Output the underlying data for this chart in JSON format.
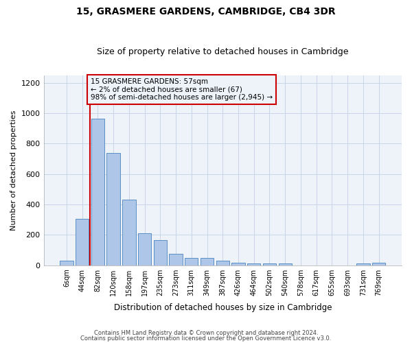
{
  "title": "15, GRASMERE GARDENS, CAMBRIDGE, CB4 3DR",
  "subtitle": "Size of property relative to detached houses in Cambridge",
  "xlabel": "Distribution of detached houses by size in Cambridge",
  "ylabel": "Number of detached properties",
  "bar_labels": [
    "6sqm",
    "44sqm",
    "82sqm",
    "120sqm",
    "158sqm",
    "197sqm",
    "235sqm",
    "273sqm",
    "311sqm",
    "349sqm",
    "387sqm",
    "426sqm",
    "464sqm",
    "502sqm",
    "540sqm",
    "578sqm",
    "617sqm",
    "655sqm",
    "693sqm",
    "731sqm",
    "769sqm"
  ],
  "bar_values": [
    28,
    305,
    965,
    740,
    430,
    210,
    165,
    75,
    48,
    48,
    30,
    18,
    12,
    12,
    12,
    0,
    0,
    0,
    0,
    10,
    15
  ],
  "bar_color": "#aec6e8",
  "bar_edge_color": "#5a8fc4",
  "grid_color": "#c8d4e8",
  "vline_color": "#cc0000",
  "annotation_text": "15 GRASMERE GARDENS: 57sqm\n← 2% of detached houses are smaller (67)\n98% of semi-detached houses are larger (2,945) →",
  "annotation_box_edgecolor": "#cc0000",
  "ylim": [
    0,
    1250
  ],
  "yticks": [
    0,
    200,
    400,
    600,
    800,
    1000,
    1200
  ],
  "footer_line1": "Contains HM Land Registry data © Crown copyright and database right 2024.",
  "footer_line2": "Contains public sector information licensed under the Open Government Licence v3.0.",
  "bg_color": "#ffffff",
  "plot_bg_color": "#eef2f9"
}
